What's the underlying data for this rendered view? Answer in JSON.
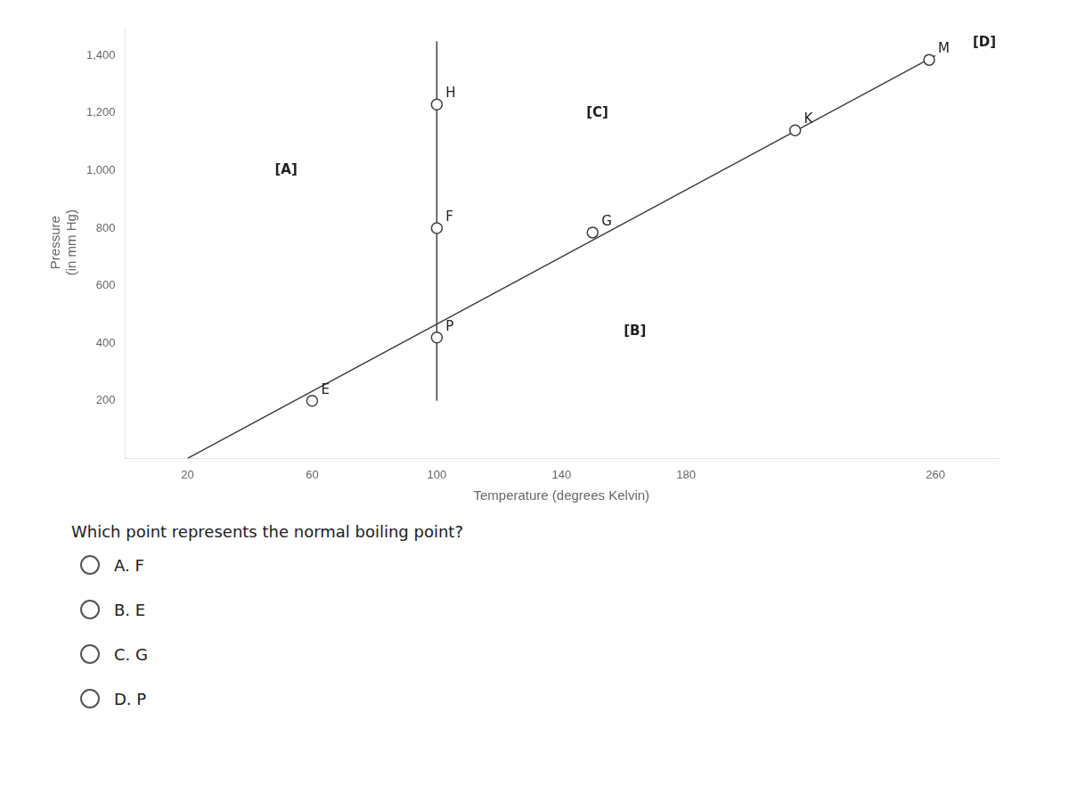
{
  "chart_data": {
    "type": "line",
    "xlabel": "Temperature (degrees Kelvin)",
    "ylabel": [
      "Pressure",
      "(in mm Hg)"
    ],
    "xlim": [
      0,
      280
    ],
    "ylim": [
      0,
      1500
    ],
    "xticks": [
      20,
      60,
      100,
      140,
      180,
      260
    ],
    "yticks": [
      200,
      400,
      600,
      800,
      1000,
      1200,
      1400
    ],
    "grid": false,
    "series": [
      {
        "type": "line",
        "color": "#404040",
        "x": [
          100,
          100
        ],
        "values": [
          200,
          1450
        ]
      },
      {
        "type": "line",
        "color": "#404040",
        "x": [
          20,
          260
        ],
        "values": [
          0,
          1400
        ]
      },
      {
        "type": "scatter",
        "marker": "circle",
        "color": "#404040",
        "x": [
          60,
          100,
          100,
          100,
          150,
          215,
          258
        ],
        "values": [
          200,
          800,
          1230,
          420,
          785,
          1140,
          1385
        ],
        "labels": [
          "E",
          "F",
          "H",
          "P",
          "G",
          "K",
          "M"
        ]
      }
    ],
    "annotations": [
      {
        "text": "[A]",
        "x": 48,
        "y": 1000
      },
      {
        "text": "[B]",
        "x": 160,
        "y": 440
      },
      {
        "text": "[C]",
        "x": 148,
        "y": 1200
      },
      {
        "text": "[D]",
        "x": 272,
        "y": 1445
      }
    ],
    "question": "Which point represents the normal boiling point?",
    "choices": [
      "A.  F",
      "B.  E",
      "C.  G",
      "D.  P"
    ]
  }
}
